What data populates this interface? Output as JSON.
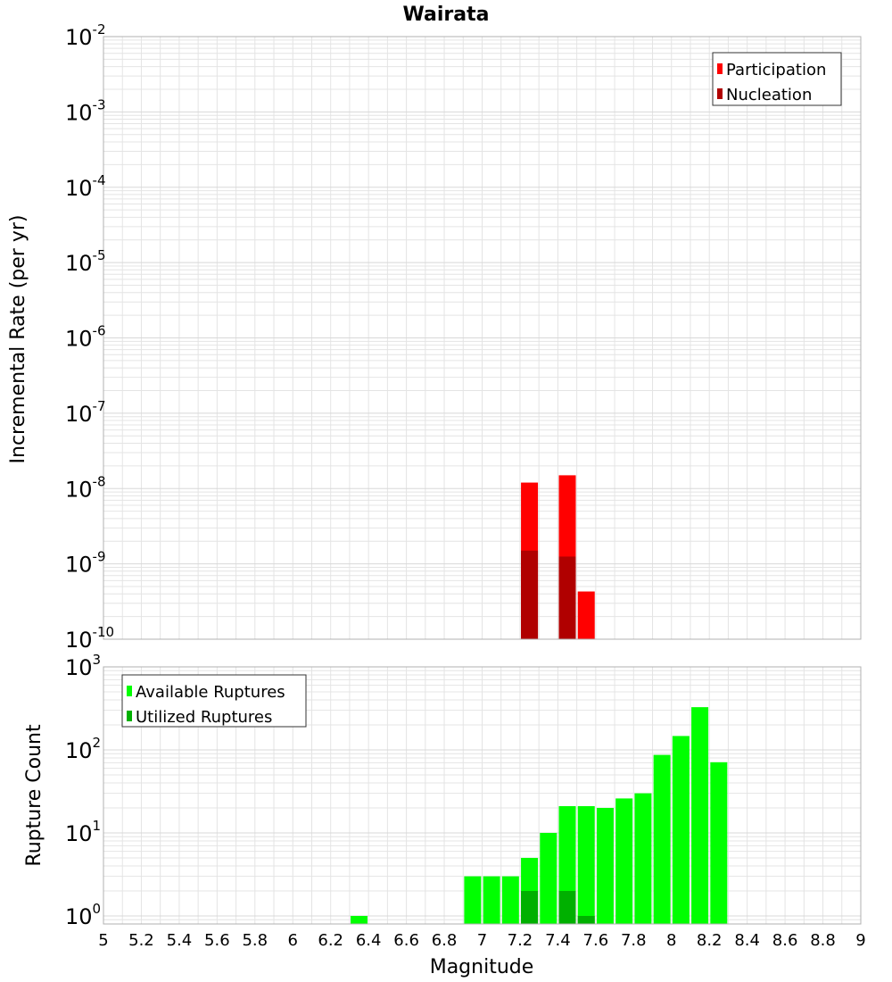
{
  "title": "Wairata",
  "colors": {
    "participation": "#ff0000",
    "nucleation": "#b00000",
    "available": "#00ff00",
    "utilized": "#00b000",
    "grid": "#e4e4e4",
    "frame": "#b0b0b0"
  },
  "chart_data": [
    {
      "type": "bar",
      "ylabel": "Incremental Rate (per yr)",
      "xlabel": "",
      "yscale": "log",
      "ylim": [
        1e-10,
        0.01
      ],
      "xlim": [
        5,
        9
      ],
      "grid": true,
      "legend": "top-right",
      "ytick_labels": [
        {
          "base": "10",
          "exp": "-2"
        },
        {
          "base": "10",
          "exp": "-3"
        },
        {
          "base": "10",
          "exp": "-4"
        },
        {
          "base": "10",
          "exp": "-5"
        },
        {
          "base": "10",
          "exp": "-6"
        },
        {
          "base": "10",
          "exp": "-7"
        },
        {
          "base": "10",
          "exp": "-8"
        },
        {
          "base": "10",
          "exp": "-9"
        },
        {
          "base": "10",
          "exp": "-10"
        }
      ],
      "series": [
        {
          "name": "Participation",
          "color": "#ff0000",
          "points": [
            {
              "x": 7.25,
              "y": 1.2e-08
            },
            {
              "x": 7.45,
              "y": 1.5e-08
            },
            {
              "x": 7.55,
              "y": 4.3e-10
            }
          ]
        },
        {
          "name": "Nucleation",
          "color": "#b00000",
          "points": [
            {
              "x": 7.25,
              "y": 1.5e-09
            },
            {
              "x": 7.45,
              "y": 1.25e-09
            }
          ]
        }
      ]
    },
    {
      "type": "bar",
      "ylabel": "Rupture Count",
      "xlabel": "Magnitude",
      "yscale": "log",
      "ylim": [
        0.8,
        1000
      ],
      "xlim": [
        5,
        9
      ],
      "grid": true,
      "legend": "top-left",
      "ytick_labels": [
        {
          "base": "10",
          "exp": "3"
        },
        {
          "base": "10",
          "exp": "2"
        },
        {
          "base": "10",
          "exp": "1"
        },
        {
          "base": "10",
          "exp": "0"
        }
      ],
      "xtick_labels": [
        "5",
        "5.2",
        "5.4",
        "5.6",
        "5.8",
        "6",
        "6.2",
        "6.4",
        "6.6",
        "6.8",
        "7",
        "7.2",
        "7.4",
        "7.6",
        "7.8",
        "8",
        "8.2",
        "8.4",
        "8.6",
        "8.8",
        "9"
      ],
      "series": [
        {
          "name": "Available Ruptures",
          "color": "#00ff00",
          "points": [
            {
              "x": 6.35,
              "y": 1
            },
            {
              "x": 6.95,
              "y": 3
            },
            {
              "x": 7.05,
              "y": 3
            },
            {
              "x": 7.15,
              "y": 3
            },
            {
              "x": 7.25,
              "y": 5
            },
            {
              "x": 7.35,
              "y": 10
            },
            {
              "x": 7.45,
              "y": 21
            },
            {
              "x": 7.55,
              "y": 21
            },
            {
              "x": 7.65,
              "y": 20
            },
            {
              "x": 7.75,
              "y": 26
            },
            {
              "x": 7.85,
              "y": 30
            },
            {
              "x": 7.95,
              "y": 87
            },
            {
              "x": 8.05,
              "y": 147
            },
            {
              "x": 8.15,
              "y": 327
            },
            {
              "x": 8.25,
              "y": 71
            }
          ]
        },
        {
          "name": "Utilized Ruptures",
          "color": "#00b000",
          "points": [
            {
              "x": 7.25,
              "y": 2
            },
            {
              "x": 7.45,
              "y": 2
            },
            {
              "x": 7.55,
              "y": 1
            }
          ]
        }
      ]
    }
  ]
}
